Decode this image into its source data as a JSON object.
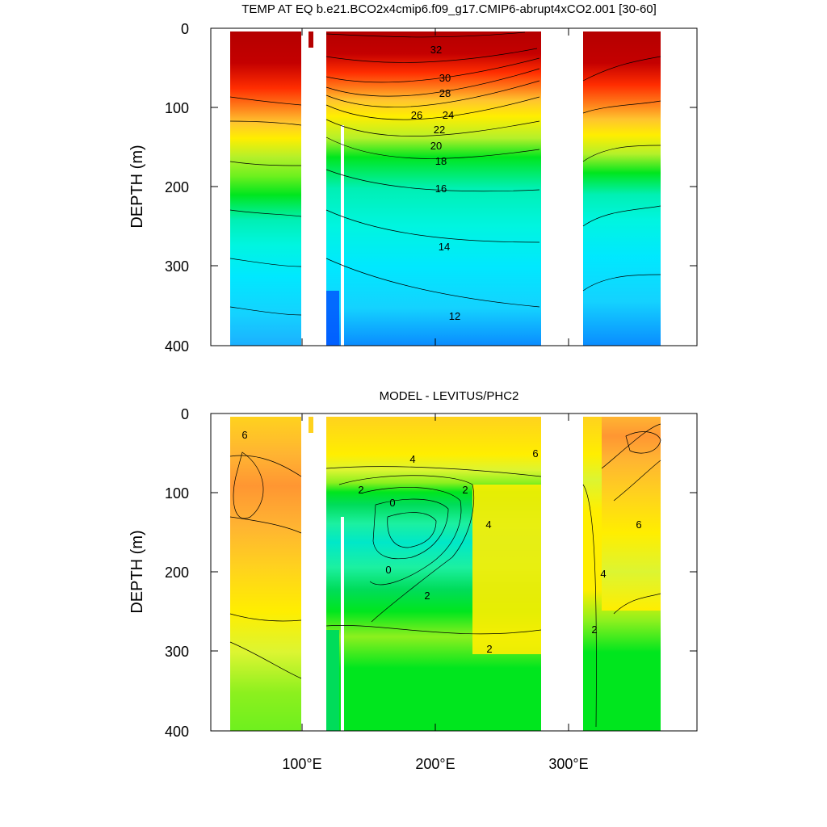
{
  "chart_data": [
    {
      "type": "heatmap",
      "title": "TEMP AT EQ b.e21.BCO2x4cmip6.f09_g17.CMIP6-abrupt4xCO2.001 [30-60]",
      "ylabel": "DEPTH (m)",
      "xlabel": "",
      "xlim": [
        30,
        390
      ],
      "ylim": [
        400,
        0
      ],
      "yticks": [
        "0",
        "100",
        "200",
        "300",
        "400"
      ],
      "xticks": [
        "100°E",
        "200°E",
        "300°E"
      ],
      "contour_labels": [
        {
          "text": "32",
          "x": 200,
          "depth": 25
        },
        {
          "text": "30",
          "x": 206,
          "depth": 63
        },
        {
          "text": "28",
          "x": 206,
          "depth": 82
        },
        {
          "text": "26",
          "x": 178,
          "depth": 110
        },
        {
          "text": "24",
          "x": 210,
          "depth": 110
        },
        {
          "text": "22",
          "x": 202,
          "depth": 128
        },
        {
          "text": "20",
          "x": 198,
          "depth": 148
        },
        {
          "text": "18",
          "x": 203,
          "depth": 167
        },
        {
          "text": "16",
          "x": 202,
          "depth": 202
        },
        {
          "text": "14",
          "x": 207,
          "depth": 275
        },
        {
          "text": "12",
          "x": 213,
          "depth": 365
        }
      ],
      "colors": [
        "#0057ff",
        "#0a8cff",
        "#1cb0ff",
        "#14d2ff",
        "#00e8ff",
        "#00f5e0",
        "#00f0b4",
        "#2fe87a",
        "#00e61e",
        "#6ef01e",
        "#b4f02a",
        "#e6f53c",
        "#ffff28",
        "#ffe400",
        "#ffc52e",
        "#ffa23a",
        "#ff7d1a",
        "#ff5a00",
        "#ff2d00",
        "#e60000",
        "#b40000"
      ]
    },
    {
      "type": "heatmap",
      "title": "MODEL - LEVITUS/PHC2",
      "ylabel": "DEPTH (m)",
      "xlabel": "",
      "xlim": [
        30,
        390
      ],
      "ylim": [
        400,
        0
      ],
      "yticks": [
        "0",
        "100",
        "200",
        "300",
        "400"
      ],
      "xticks": [
        "100°E",
        "200°E",
        "300°E"
      ],
      "contour_labels": [
        {
          "text": "6",
          "x": 44,
          "depth": 25
        },
        {
          "text": "4",
          "x": 173,
          "depth": 58
        },
        {
          "text": "6",
          "x": 276,
          "depth": 50
        },
        {
          "text": "2",
          "x": 140,
          "depth": 95
        },
        {
          "text": "2",
          "x": 222,
          "depth": 95
        },
        {
          "text": "0",
          "x": 168,
          "depth": 112
        },
        {
          "text": "4",
          "x": 242,
          "depth": 140
        },
        {
          "text": "6",
          "x": 377,
          "depth": 140
        },
        {
          "text": "0",
          "x": 168,
          "depth": 197
        },
        {
          "text": "4",
          "x": 353,
          "depth": 200
        },
        {
          "text": "2",
          "x": 193,
          "depth": 228
        },
        {
          "text": "2",
          "x": 323,
          "depth": 272
        },
        {
          "text": "2",
          "x": 240,
          "depth": 297
        }
      ],
      "colors": [
        "#00e8c8",
        "#1cf0a0",
        "#00dc5a",
        "#00e61e",
        "#8cf01e",
        "#dcf532",
        "#ffee00",
        "#ffd21e",
        "#ffb432",
        "#ff9632",
        "#ff7800",
        "#ff4b00"
      ]
    }
  ]
}
